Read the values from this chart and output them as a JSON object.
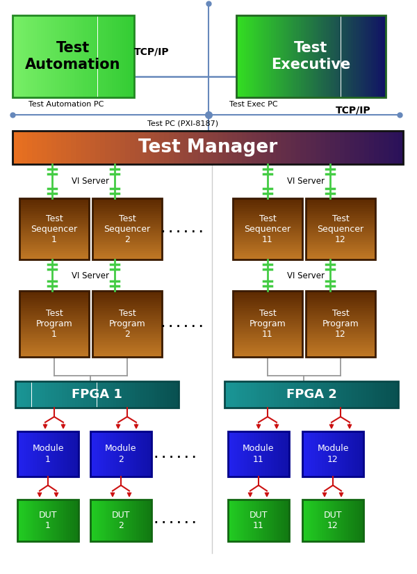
{
  "bg_color": "#ffffff",
  "tcp_ip_label": "TCP/IP",
  "tcp_ip_label2": "TCP/IP",
  "test_automation_label": "Test\nAutomation",
  "test_executive_label": "Test\nExecutive",
  "test_automation_pc": "Test Automation PC",
  "test_exec_pc": "Test Exec PC",
  "test_pc": "Test PC (PXI-8187)",
  "test_manager_label": "Test Manager",
  "vi_server": "VI Server",
  "green_start": "#66ee55",
  "green_end": "#22bb22",
  "exec_green": "#22dd22",
  "exec_blue": "#101060",
  "manager_orange": "#e87020",
  "manager_purple": "#280f55",
  "brown_top": "#c07020",
  "brown_bot": "#5a2800",
  "teal_start": "#1a9595",
  "teal_end": "#0a4848",
  "blue_start": "#1a1aee",
  "blue_end": "#0a0a99",
  "dut_start": "#22bb22",
  "dut_end": "#117711",
  "green_conn": "#44cc44",
  "red_conn": "#cc1111",
  "line_blue": "#6688bb",
  "line_gray": "#999999",
  "sep_gray": "#cccccc"
}
